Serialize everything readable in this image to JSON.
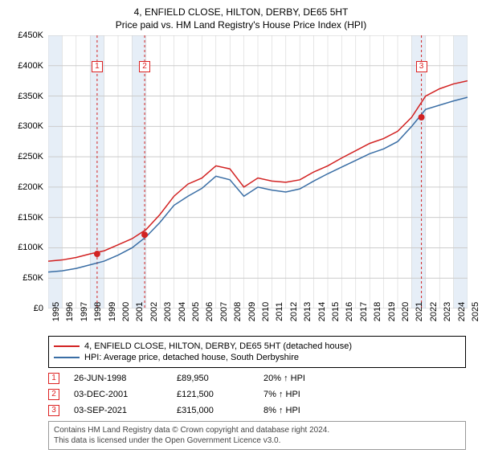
{
  "title": "4, ENFIELD CLOSE, HILTON, DERBY, DE65 5HT",
  "subtitle": "Price paid vs. HM Land Registry's House Price Index (HPI)",
  "chart": {
    "type": "line",
    "x_years": [
      "1995",
      "1996",
      "1997",
      "1998",
      "1999",
      "2000",
      "2001",
      "2002",
      "2003",
      "2004",
      "2005",
      "2006",
      "2007",
      "2008",
      "2009",
      "2010",
      "2011",
      "2012",
      "2013",
      "2014",
      "2015",
      "2016",
      "2017",
      "2018",
      "2019",
      "2020",
      "2021",
      "2022",
      "2023",
      "2024",
      "2025"
    ],
    "ylim": [
      0,
      450000
    ],
    "ytick_step": 50000,
    "ylabels": [
      "£0",
      "£50K",
      "£100K",
      "£150K",
      "£200K",
      "£250K",
      "£300K",
      "£350K",
      "£400K",
      "£450K"
    ],
    "background": "#ffffff",
    "grid_color": "#cccccc",
    "band_color": "#e6eef7",
    "band_years": [
      [
        "1995",
        "1996"
      ],
      [
        "1998",
        "1999"
      ],
      [
        "2001",
        "2002"
      ],
      [
        "2021",
        "2022"
      ],
      [
        "2024",
        "2025"
      ]
    ],
    "series": [
      {
        "name": "4, ENFIELD CLOSE, HILTON, DERBY, DE65 5HT (detached house)",
        "color": "#d22222",
        "width": 1.5,
        "values_by_year": {
          "1995": 78000,
          "1996": 80000,
          "1997": 84000,
          "1998": 90000,
          "1999": 95000,
          "2000": 105000,
          "2001": 115000,
          "2002": 130000,
          "2003": 155000,
          "2004": 185000,
          "2005": 205000,
          "2006": 215000,
          "2007": 235000,
          "2008": 230000,
          "2009": 200000,
          "2010": 215000,
          "2011": 210000,
          "2012": 208000,
          "2013": 212000,
          "2014": 225000,
          "2015": 235000,
          "2016": 248000,
          "2017": 260000,
          "2018": 272000,
          "2019": 280000,
          "2020": 292000,
          "2021": 315000,
          "2022": 350000,
          "2023": 362000,
          "2024": 370000,
          "2025": 375000
        }
      },
      {
        "name": "HPI: Average price, detached house, South Derbyshire",
        "color": "#3a6ea5",
        "width": 1.5,
        "values_by_year": {
          "1995": 60000,
          "1996": 62000,
          "1997": 66000,
          "1998": 72000,
          "1999": 78000,
          "2000": 88000,
          "2001": 100000,
          "2002": 118000,
          "2003": 142000,
          "2004": 170000,
          "2005": 185000,
          "2006": 198000,
          "2007": 218000,
          "2008": 212000,
          "2009": 185000,
          "2010": 200000,
          "2011": 195000,
          "2012": 192000,
          "2013": 197000,
          "2014": 210000,
          "2015": 222000,
          "2016": 233000,
          "2017": 244000,
          "2018": 255000,
          "2019": 263000,
          "2020": 275000,
          "2021": 300000,
          "2022": 328000,
          "2023": 335000,
          "2024": 342000,
          "2025": 348000
        }
      }
    ],
    "sale_markers": [
      {
        "n": "1",
        "year": 1998.5,
        "value": 89950
      },
      {
        "n": "2",
        "year": 2001.9,
        "value": 121500
      },
      {
        "n": "3",
        "year": 2021.7,
        "value": 315000
      }
    ],
    "marker_color": "#d22222",
    "marker_line_color": "#d22222",
    "marker_line_dash": "3,3",
    "marker_radius": 4
  },
  "legend": {
    "series1": "4, ENFIELD CLOSE, HILTON, DERBY, DE65 5HT (detached house)",
    "series2": "HPI: Average price, detached house, South Derbyshire",
    "color1": "#d22222",
    "color2": "#3a6ea5"
  },
  "sales": [
    {
      "n": "1",
      "date": "26-JUN-1998",
      "price": "£89,950",
      "pct": "20% ↑ HPI"
    },
    {
      "n": "2",
      "date": "03-DEC-2001",
      "price": "£121,500",
      "pct": "7% ↑ HPI"
    },
    {
      "n": "3",
      "date": "03-SEP-2021",
      "price": "£315,000",
      "pct": "8% ↑ HPI"
    }
  ],
  "footer": {
    "l1": "Contains HM Land Registry data © Crown copyright and database right 2024.",
    "l2": "This data is licensed under the Open Government Licence v3.0."
  }
}
